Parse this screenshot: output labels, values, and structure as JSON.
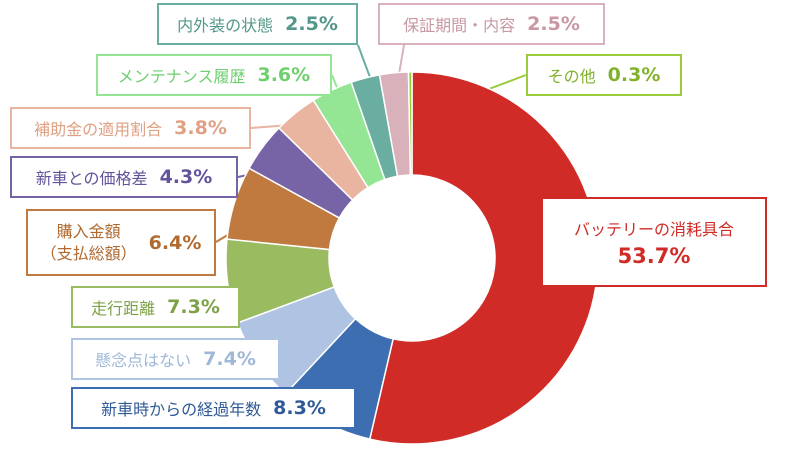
{
  "chart_data": {
    "type": "pie",
    "variant": "donut",
    "title": "",
    "slices": [
      {
        "label": "バッテリーの消耗具合",
        "value": 53.7,
        "value_label": "53.7%",
        "color": "#d02b26"
      },
      {
        "label": "新車時からの経過年数",
        "value": 8.3,
        "value_label": "8.3%",
        "color": "#3e6eb2"
      },
      {
        "label": "懸念点はない",
        "value": 7.4,
        "value_label": "7.4%",
        "color": "#aec4e2"
      },
      {
        "label": "走行距離",
        "value": 7.3,
        "value_label": "7.3%",
        "color": "#9bbb61"
      },
      {
        "label_line1": "購入金額",
        "label_line2": "（支払総額）",
        "value": 6.4,
        "value_label": "6.4%",
        "color": "#c07a3f"
      },
      {
        "label": "新車との価格差",
        "value": 4.3,
        "value_label": "4.3%",
        "color": "#7764a6"
      },
      {
        "label": "補助金の適用割合",
        "value": 3.8,
        "value_label": "3.8%",
        "color": "#e9b4a0"
      },
      {
        "label": "メンテナンス履歴",
        "value": 3.6,
        "value_label": "3.6%",
        "color": "#94e694"
      },
      {
        "label": "内外装の状態",
        "value": 2.5,
        "value_label": "2.5%",
        "color": "#6aada1"
      },
      {
        "label": "保証期間・内容",
        "value": 2.5,
        "value_label": "2.5%",
        "color": "#d8b1ba"
      },
      {
        "label": "その他",
        "value": 0.3,
        "value_label": "0.3%",
        "color": "#9acb3c"
      }
    ]
  }
}
